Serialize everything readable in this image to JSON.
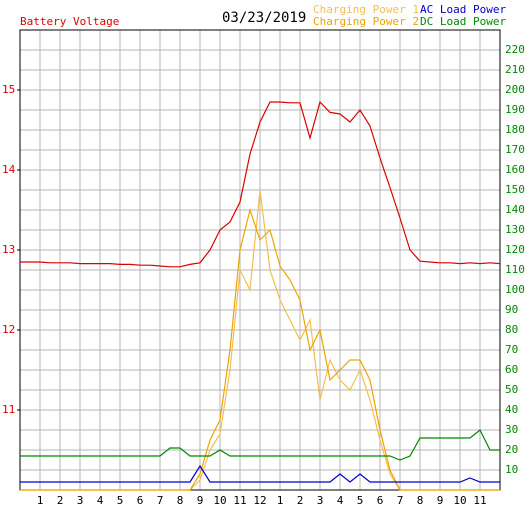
{
  "chart_data": {
    "type": "line",
    "date": "03/23/2019",
    "x": [
      0,
      0.5,
      1,
      1.5,
      2,
      2.5,
      3,
      3.5,
      4,
      4.5,
      5,
      5.5,
      6,
      6.5,
      7,
      7.5,
      8,
      8.5,
      9,
      9.5,
      10,
      10.5,
      11,
      11.5,
      12,
      12.5,
      13,
      13.5,
      14,
      14.5,
      15,
      15.5,
      16,
      16.5,
      17,
      17.5,
      18,
      18.5,
      19,
      19.5,
      20,
      20.5,
      21,
      21.5,
      22,
      22.5,
      23,
      23.5,
      24
    ],
    "xlim": [
      0,
      24
    ],
    "xticks": [
      1,
      2,
      3,
      4,
      5,
      6,
      7,
      8,
      9,
      10,
      11,
      12,
      {
        "value": 13,
        "label": "1"
      },
      {
        "value": 14,
        "label": "2"
      },
      {
        "value": 15,
        "label": "3"
      },
      {
        "value": 16,
        "label": "4"
      },
      {
        "value": 17,
        "label": "5"
      },
      {
        "value": 18,
        "label": "6"
      },
      {
        "value": 19,
        "label": "7"
      },
      {
        "value": 20,
        "label": "8"
      },
      {
        "value": 21,
        "label": "9"
      },
      {
        "value": 22,
        "label": "10"
      },
      {
        "value": 23,
        "label": "11"
      }
    ],
    "ylim": [
      10,
      15.75
    ],
    "yticks": [
      11,
      12,
      13,
      14,
      15
    ],
    "y2lim": [
      0,
      230
    ],
    "y2ticks": [
      10,
      20,
      30,
      40,
      50,
      60,
      70,
      80,
      90,
      100,
      110,
      120,
      130,
      140,
      150,
      160,
      170,
      180,
      190,
      200,
      210,
      220
    ],
    "grid": true,
    "series": [
      {
        "name": "Battery Voltage",
        "color": "#dd0000",
        "axis": "y",
        "values": [
          12.85,
          12.85,
          12.85,
          12.84,
          12.84,
          12.84,
          12.83,
          12.83,
          12.83,
          12.83,
          12.82,
          12.82,
          12.81,
          12.81,
          12.8,
          12.79,
          12.79,
          12.82,
          12.84,
          13.0,
          13.25,
          13.35,
          13.6,
          14.2,
          14.6,
          14.85,
          14.85,
          14.84,
          14.84,
          14.4,
          14.85,
          14.72,
          14.7,
          14.6,
          14.75,
          14.55,
          14.15,
          13.78,
          13.4,
          13.0,
          12.86,
          12.85,
          12.84,
          12.84,
          12.83,
          12.84,
          12.83,
          12.84,
          12.83
        ]
      },
      {
        "name": "Charging Power 1",
        "color": "#f5be50",
        "axis": "y2",
        "values": [
          0,
          0,
          0,
          0,
          0,
          0,
          0,
          0,
          0,
          0,
          0,
          0,
          0,
          0,
          0,
          0,
          0,
          0,
          5,
          20,
          28,
          60,
          110,
          100,
          150,
          110,
          95,
          85,
          75,
          85,
          45,
          65,
          55,
          50,
          60,
          45,
          25,
          8,
          0,
          0,
          0,
          0,
          0,
          0,
          0,
          0,
          0,
          0,
          0
        ]
      },
      {
        "name": "Charging Power 2",
        "color": "#eea400",
        "axis": "y2",
        "values": [
          0,
          0,
          0,
          0,
          0,
          0,
          0,
          0,
          0,
          0,
          0,
          0,
          0,
          0,
          0,
          0,
          0,
          0,
          8,
          25,
          35,
          70,
          120,
          140,
          125,
          130,
          112,
          105,
          95,
          70,
          80,
          55,
          60,
          65,
          65,
          55,
          30,
          10,
          0,
          0,
          0,
          0,
          0,
          0,
          0,
          0,
          0,
          0,
          0
        ]
      },
      {
        "name": "AC Load Power",
        "color": "#0000cc",
        "axis": "y2",
        "values": [
          4,
          4,
          4,
          4,
          4,
          4,
          4,
          4,
          4,
          4,
          4,
          4,
          4,
          4,
          4,
          4,
          4,
          4,
          12,
          4,
          4,
          4,
          4,
          4,
          4,
          4,
          4,
          4,
          4,
          4,
          4,
          4,
          8,
          4,
          8,
          4,
          4,
          4,
          4,
          4,
          4,
          4,
          4,
          4,
          4,
          6,
          4,
          4,
          4
        ]
      },
      {
        "name": "DC Load Power",
        "color": "#008800",
        "axis": "y2",
        "values": [
          17,
          17,
          17,
          17,
          17,
          17,
          17,
          17,
          17,
          17,
          17,
          17,
          17,
          17,
          17,
          21,
          21,
          17,
          17,
          17,
          20,
          17,
          17,
          17,
          17,
          17,
          17,
          17,
          17,
          17,
          17,
          17,
          17,
          17,
          17,
          17,
          17,
          17,
          15,
          17,
          26,
          26,
          26,
          26,
          26,
          26,
          30,
          20,
          20
        ]
      }
    ]
  }
}
